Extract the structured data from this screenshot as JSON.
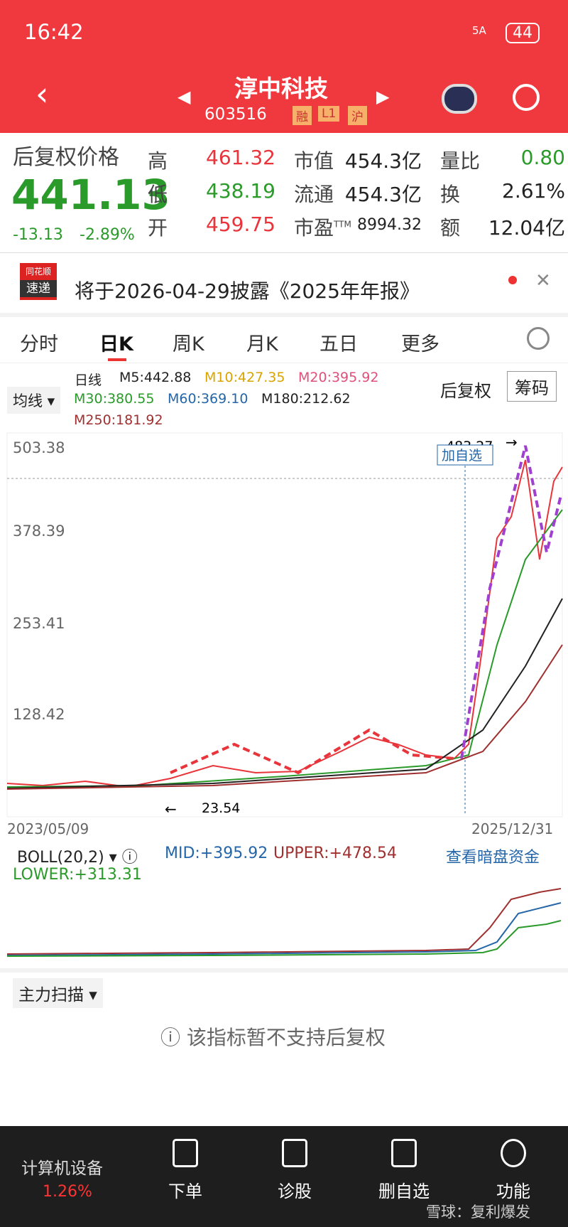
{
  "status_bar": {
    "time": "16:42",
    "network": "5A",
    "battery": "44"
  },
  "header": {
    "title": "淳中科技",
    "code": "603516",
    "tags": [
      "融",
      "L1",
      "沪"
    ]
  },
  "quote": {
    "label": "后复权价格",
    "price": "441.13",
    "change": "-13.13",
    "change_pct": "-2.89%",
    "stats": [
      {
        "label": "高",
        "value": "461.32"
      },
      {
        "label": "低",
        "value": "438.19"
      },
      {
        "label": "开",
        "value": "459.75"
      },
      {
        "label": "市值",
        "value": "454.3亿"
      },
      {
        "label": "流通",
        "value": "454.3亿"
      },
      {
        "label": "市盈",
        "sup": "TTM",
        "value": "8994.32"
      },
      {
        "label": "量比",
        "value": "0.80"
      },
      {
        "label": "换",
        "value": "2.61%"
      },
      {
        "label": "额",
        "value": "12.04亿"
      }
    ]
  },
  "notice": {
    "brand": [
      "同花顺",
      "速递"
    ],
    "text": "将于2026-04-29披露《2025年年报》"
  },
  "tabs": [
    "分时",
    "日K",
    "周K",
    "月K",
    "五日",
    "更多"
  ],
  "chart": {
    "indicator": "均线",
    "period": "日线",
    "ma": [
      "M5:442.88",
      "M10:427.35",
      "M20:395.92",
      "M30:380.55",
      "M60:369.10",
      "M180:212.62",
      "M250:181.92"
    ],
    "adjust": "后复权",
    "chips_button": "筹码",
    "y_labels": [
      "503.38",
      "378.39",
      "253.41",
      "128.42"
    ],
    "high_label": "483.27",
    "low_label": "23.54",
    "watch_tag": "加自选",
    "start_date": "2023/05/09",
    "end_date": "2025/12/31"
  },
  "boll": {
    "name": "BOLL(20,2)",
    "mid": "MID:+395.92",
    "upper": "UPPER:+478.54",
    "lower": "LOWER:+313.31",
    "link": "查看暗盘资金"
  },
  "main_force": {
    "title": "主力扫描",
    "message": "该指标暂不支持后复权"
  },
  "bottom_nav": {
    "sector": "计算机设备",
    "sector_change": "1.26%",
    "items": [
      "下单",
      "诊股",
      "删自选",
      "功能"
    ],
    "watermark": "雪球：复利爆发"
  }
}
